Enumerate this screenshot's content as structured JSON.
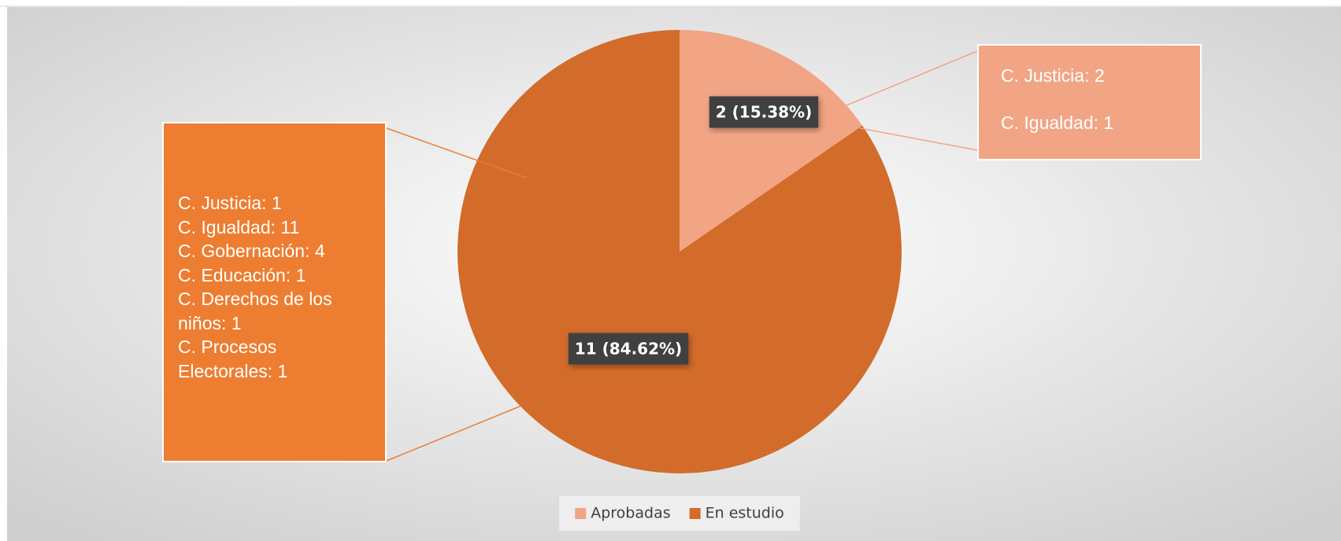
{
  "chart_data": {
    "type": "pie",
    "categories": [
      "Aprobadas",
      "En estudio"
    ],
    "values": [
      2,
      11
    ],
    "value_labels": [
      "2 (15.38%)",
      "11 (84.62%)"
    ],
    "colors": [
      "#f1a584",
      "#d36b2a"
    ],
    "legend": "bottom",
    "annotations": [
      {
        "lines": [
          "C. Justicia: 2",
          "C. Igualdad: 1"
        ],
        "color": "#f1a584"
      },
      {
        "lines": [
          "C. Justicia: 1",
          "C. Igualdad: 11",
          "C. Gobernación: 4",
          "C. Educación: 1",
          "C. Derechos de los niños: 1",
          "C. Procesos Electorales: 1"
        ],
        "color": "#ed7d31"
      }
    ]
  }
}
